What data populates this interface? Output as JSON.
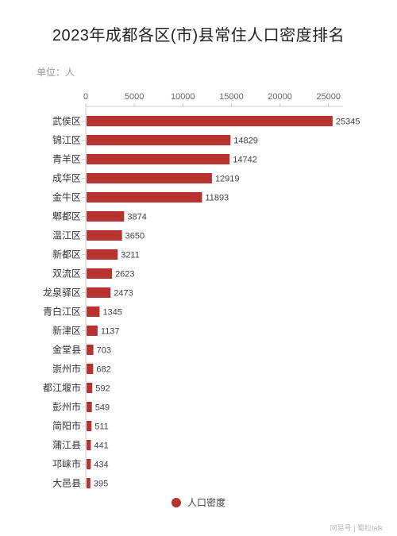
{
  "title": "2023年成都各区(市)县常住人口密度排名",
  "unit_label": "单位：人",
  "watermark": "网易号 | 蜀粒talk",
  "chart_data": {
    "type": "bar",
    "orientation": "horizontal",
    "title": "2023年成都各区(市)县常住人口密度排名",
    "categories": [
      "武侯区",
      "锦江区",
      "青羊区",
      "成华区",
      "金牛区",
      "郫都区",
      "温江区",
      "新都区",
      "双流区",
      "龙泉驿区",
      "青白江区",
      "新津区",
      "金堂县",
      "崇州市",
      "都江堰市",
      "彭州市",
      "简阳市",
      "蒲江县",
      "邛崃市",
      "大邑县"
    ],
    "series": [
      {
        "name": "人口密度",
        "color": "#b83330",
        "values": [
          25345,
          14829,
          14742,
          12919,
          11893,
          3874,
          3650,
          3211,
          2623,
          2473,
          1345,
          1137,
          703,
          682,
          592,
          549,
          511,
          441,
          434,
          395
        ]
      }
    ],
    "xticks": [
      0,
      5000,
      10000,
      15000,
      20000,
      25000
    ],
    "xlim": [
      0,
      26500
    ],
    "legend_position": "bottom-center",
    "grid": false
  }
}
